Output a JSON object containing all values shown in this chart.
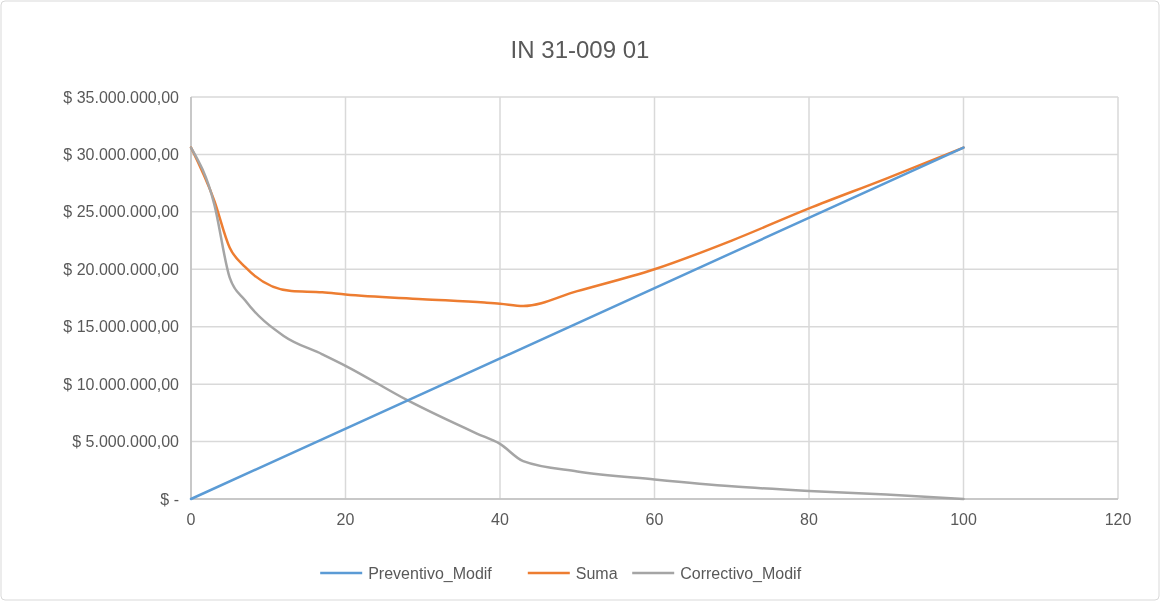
{
  "chart_data": {
    "type": "line",
    "title": "IN 31-009 01",
    "xlim": [
      0,
      120
    ],
    "xticks": [
      0,
      20,
      40,
      60,
      80,
      100,
      120
    ],
    "ylim": [
      0,
      35000000
    ],
    "yticks": [
      {
        "value": 0,
        "label": "$ -"
      },
      {
        "value": 5000000,
        "label": "$ 5.000.000,00"
      },
      {
        "value": 10000000,
        "label": "$ 10.000.000,00"
      },
      {
        "value": 15000000,
        "label": "$ 15.000.000,00"
      },
      {
        "value": 20000000,
        "label": "$ 20.000.000,00"
      },
      {
        "value": 25000000,
        "label": "$ 25.000.000,00"
      },
      {
        "value": 30000000,
        "label": "$ 30.000.000,00"
      },
      {
        "value": 35000000,
        "label": "$ 35.000.000,00"
      }
    ],
    "grid": true,
    "legend": "bottom",
    "marker": "none",
    "line_style": "solid",
    "series": [
      {
        "name": "Preventivo_Modif",
        "color": "#5b9bd5",
        "x": [
          0,
          100
        ],
        "values": [
          0,
          30600000
        ]
      },
      {
        "name": "Suma",
        "color": "#ed7d31",
        "x": [
          0,
          3,
          5,
          7,
          13,
          17,
          20,
          30,
          38,
          40,
          43,
          50,
          60,
          70,
          80,
          90,
          100
        ],
        "values": [
          30600000,
          26000000,
          21900000,
          20200000,
          18100000,
          18000000,
          17800000,
          17400000,
          17100000,
          17000000,
          16800000,
          18100000,
          20000000,
          22500000,
          25300000,
          27900000,
          30600000
        ]
      },
      {
        "name": "Correctivo_Modif",
        "color": "#a5a5a5",
        "x": [
          0,
          3,
          5,
          7,
          12,
          17,
          20,
          28,
          37,
          40,
          43,
          50,
          60,
          70,
          80,
          90,
          100
        ],
        "values": [
          30600000,
          25700000,
          19300000,
          17300000,
          14200000,
          12600000,
          11600000,
          8600000,
          5700000,
          4800000,
          3300000,
          2400000,
          1700000,
          1100000,
          700000,
          400000,
          0
        ]
      }
    ]
  }
}
